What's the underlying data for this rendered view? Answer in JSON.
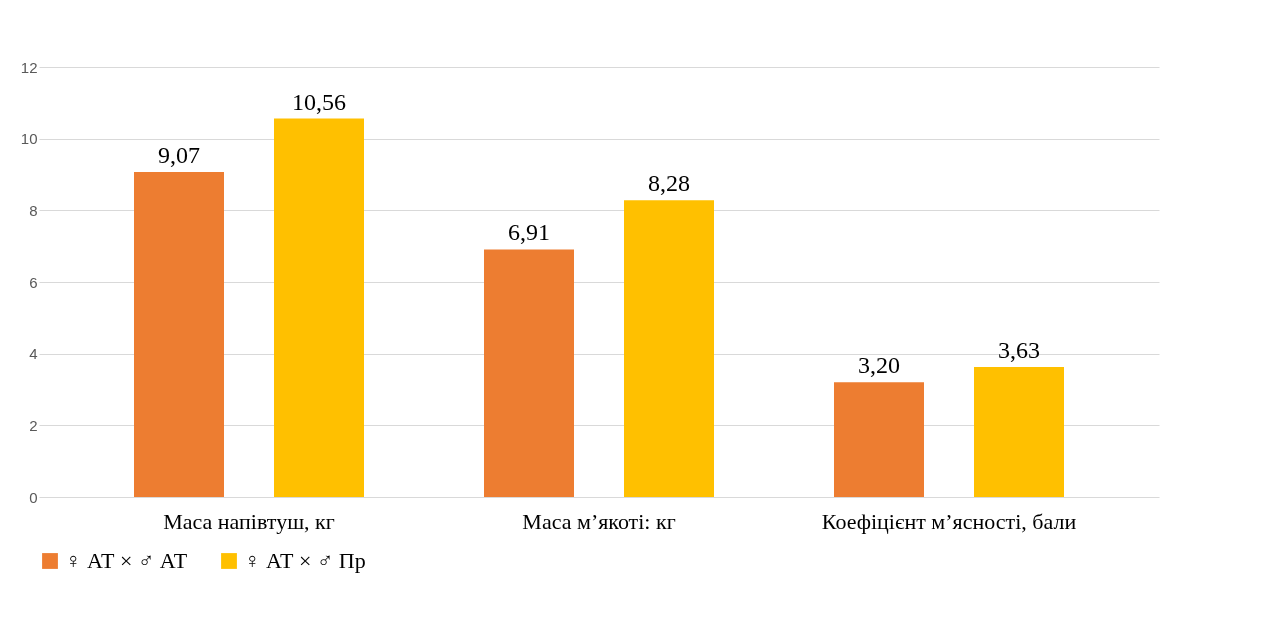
{
  "chart_data": {
    "type": "bar",
    "categories": [
      "Маса напівтуш, кг",
      "Маса м’якоті: кг",
      "Коефіцієнт м’ясності, бали"
    ],
    "series": [
      {
        "name": "♀ АТ × ♂ АТ",
        "color": "#ed7d31",
        "values": [
          9.07,
          6.91,
          3.2
        ],
        "value_labels": [
          "9,07",
          "6,91",
          "3,20"
        ]
      },
      {
        "name": "♀ АТ × ♂ Пр",
        "color": "#ffc000",
        "values": [
          10.56,
          8.28,
          3.63
        ],
        "value_labels": [
          "10,56",
          "8,28",
          "3,63"
        ]
      }
    ],
    "ylim": [
      0,
      12
    ],
    "yticks": [
      0,
      2,
      4,
      6,
      8,
      10,
      12
    ],
    "grid": "y",
    "legend": "bottom"
  }
}
